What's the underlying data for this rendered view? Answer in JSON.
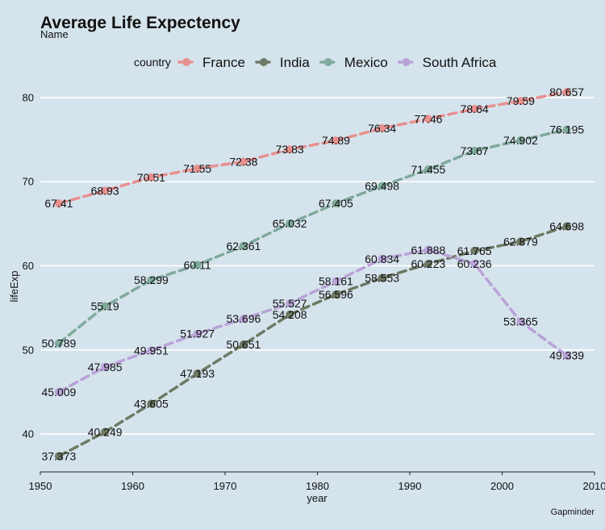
{
  "chart_data": {
    "type": "line",
    "title": "Average Life Expectency",
    "subtitle": "Name",
    "xlabel": "year",
    "ylabel": "lifeExp",
    "caption": "Gapminder",
    "legend_title": "country",
    "legend_position": "top",
    "xlim": [
      1950,
      2010
    ],
    "ylim": [
      35.5,
      82
    ],
    "x_ticks": [
      1950,
      1960,
      1970,
      1980,
      1990,
      2000,
      2010
    ],
    "y_ticks": [
      40,
      50,
      60,
      70,
      80
    ],
    "grid": {
      "horizontal": true,
      "vertical": false
    },
    "line_style": "dashed",
    "series": [
      {
        "name": "France",
        "color": "#e8908f",
        "x": [
          1952,
          1957,
          1962,
          1967,
          1972,
          1977,
          1982,
          1987,
          1992,
          1997,
          2002,
          2007
        ],
        "values": [
          67.41,
          68.93,
          70.51,
          71.55,
          72.38,
          73.83,
          74.89,
          76.34,
          77.46,
          78.64,
          79.59,
          80.657
        ],
        "labels": [
          "67.41",
          "68.93",
          "70.51",
          "71.55",
          "72.38",
          "73.83",
          "74.89",
          "76.34",
          "77.46",
          "78.64",
          "79.59",
          "80.657"
        ]
      },
      {
        "name": "India",
        "color": "#6e7a64",
        "x": [
          1952,
          1957,
          1962,
          1967,
          1972,
          1977,
          1982,
          1987,
          1992,
          1997,
          2002,
          2007
        ],
        "values": [
          37.373,
          40.249,
          43.605,
          47.193,
          50.651,
          54.208,
          56.596,
          58.553,
          60.223,
          61.765,
          62.879,
          64.698
        ],
        "labels": [
          "37.373",
          "40.249",
          "43.605",
          "47.193",
          "50.651",
          "54.208",
          "56.596",
          "58.553",
          "60.223",
          "61.765",
          "62.879",
          "64.698"
        ]
      },
      {
        "name": "Mexico",
        "color": "#7faa9c",
        "x": [
          1952,
          1957,
          1962,
          1967,
          1972,
          1977,
          1982,
          1987,
          1992,
          1997,
          2002,
          2007
        ],
        "values": [
          50.789,
          55.19,
          58.299,
          60.11,
          62.361,
          65.032,
          67.405,
          69.498,
          71.455,
          73.67,
          74.902,
          76.195
        ],
        "labels": [
          "50.789",
          "55.19",
          "58.299",
          "60.11",
          "62.361",
          "65.032",
          "67.405",
          "69.498",
          "71.455",
          "73.67",
          "74.902",
          "76.195"
        ]
      },
      {
        "name": "South Africa",
        "color": "#b9a2d8",
        "x": [
          1952,
          1957,
          1962,
          1967,
          1972,
          1977,
          1982,
          1987,
          1992,
          1997,
          2002,
          2007
        ],
        "values": [
          45.009,
          47.985,
          49.951,
          51.927,
          53.696,
          55.527,
          58.161,
          60.834,
          61.888,
          60.236,
          53.365,
          49.339
        ],
        "labels": [
          "45.009",
          "47.985",
          "49.951",
          "51.927",
          "53.696",
          "55.527",
          "58.161",
          "60.834",
          "61.888",
          "60.236",
          "53.365",
          "49.339"
        ]
      }
    ]
  }
}
